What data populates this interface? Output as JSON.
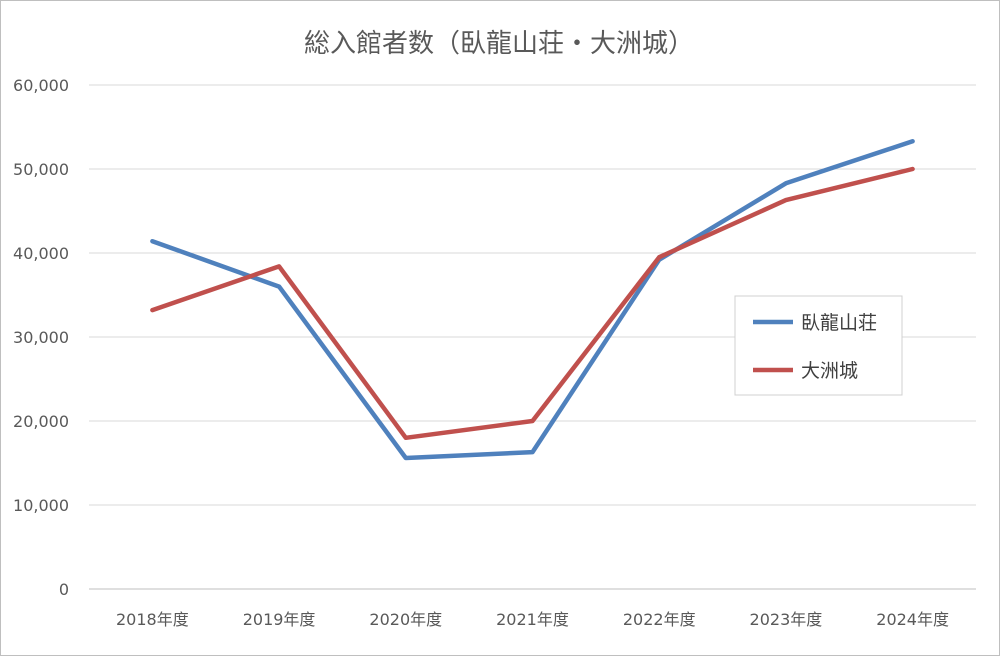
{
  "chart_data": {
    "type": "line",
    "title": "総入館者数（臥龍山荘・大洲城）",
    "xlabel": "",
    "ylabel": "",
    "categories": [
      "2018年度",
      "2019年度",
      "2020年度",
      "2021年度",
      "2022年度",
      "2023年度",
      "2024年度"
    ],
    "y_ticks": [
      "0",
      "10,000",
      "20,000",
      "30,000",
      "40,000",
      "50,000",
      "60,000"
    ],
    "ylim": [
      0,
      60000
    ],
    "grid": true,
    "legend_position": "right",
    "series": [
      {
        "name": "臥龍山荘",
        "color": "#4f81bd",
        "values": [
          41400,
          36000,
          15600,
          16300,
          39200,
          48300,
          53300
        ]
      },
      {
        "name": "大洲城",
        "color": "#c0504d",
        "values": [
          33200,
          38400,
          18000,
          20000,
          39500,
          46300,
          50000
        ]
      }
    ]
  }
}
